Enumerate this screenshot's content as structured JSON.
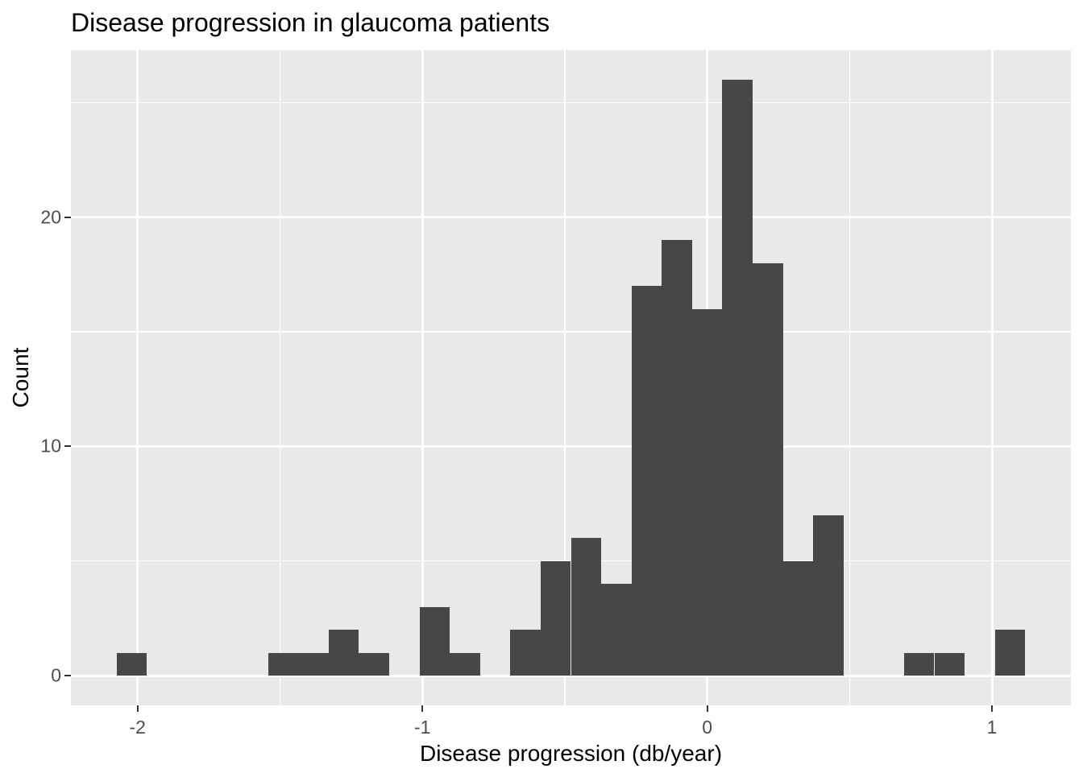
{
  "chart_data": {
    "type": "bar",
    "subtype": "histogram",
    "title": "Disease progression in glaucoma patients",
    "xlabel": "Disease progression (db/year)",
    "ylabel": "Count",
    "legend": "none",
    "grid": "white major and minor gridlines on grey panel",
    "bin_width": 0.1064,
    "xlim": [
      -2.234,
      1.277
    ],
    "ylim": [
      -1.3,
      27.3
    ],
    "bins": [
      {
        "center": -2.02,
        "count": 1
      },
      {
        "center": -1.914,
        "count": 0
      },
      {
        "center": -1.808,
        "count": 0
      },
      {
        "center": -1.701,
        "count": 0
      },
      {
        "center": -1.595,
        "count": 0
      },
      {
        "center": -1.489,
        "count": 1
      },
      {
        "center": -1.382,
        "count": 1
      },
      {
        "center": -1.276,
        "count": 2
      },
      {
        "center": -1.17,
        "count": 1
      },
      {
        "center": -1.063,
        "count": 0
      },
      {
        "center": -0.957,
        "count": 3
      },
      {
        "center": -0.851,
        "count": 1
      },
      {
        "center": -0.744,
        "count": 0
      },
      {
        "center": -0.638,
        "count": 2
      },
      {
        "center": -0.532,
        "count": 5
      },
      {
        "center": -0.425,
        "count": 6
      },
      {
        "center": -0.319,
        "count": 4
      },
      {
        "center": -0.213,
        "count": 17
      },
      {
        "center": -0.106,
        "count": 19
      },
      {
        "center": 0.0,
        "count": 16
      },
      {
        "center": 0.106,
        "count": 26
      },
      {
        "center": 0.213,
        "count": 18
      },
      {
        "center": 0.319,
        "count": 5
      },
      {
        "center": 0.425,
        "count": 7
      },
      {
        "center": 0.532,
        "count": 0
      },
      {
        "center": 0.638,
        "count": 0
      },
      {
        "center": 0.744,
        "count": 1
      },
      {
        "center": 0.851,
        "count": 1
      },
      {
        "center": 0.957,
        "count": 0
      },
      {
        "center": 1.063,
        "count": 2
      }
    ],
    "x_axis": {
      "title": "Disease progression (db/year)",
      "ticks": [
        {
          "value": -2,
          "label": "-2"
        },
        {
          "value": -1,
          "label": "-1"
        },
        {
          "value": 0,
          "label": "0"
        },
        {
          "value": 1,
          "label": "1"
        }
      ]
    },
    "y_axis": {
      "title": "Count",
      "ticks": [
        {
          "value": 0,
          "label": "0"
        },
        {
          "value": 10,
          "label": "10"
        },
        {
          "value": 20,
          "label": "20"
        }
      ]
    },
    "x_minor_gridlines": [
      -1.5,
      -0.5,
      0.5
    ],
    "y_minor_gridlines": [
      5,
      15,
      25
    ]
  },
  "style": {
    "page_bg": "#FFFFFF",
    "panel_bg": "#E9E9E9",
    "bar_color": "#474747",
    "grid_color": "#FFFFFF",
    "tick_label_color": "#4D4D4D",
    "axis_title_color": "#000000",
    "title_color": "#000000",
    "tick_mark_color": "#333333"
  }
}
